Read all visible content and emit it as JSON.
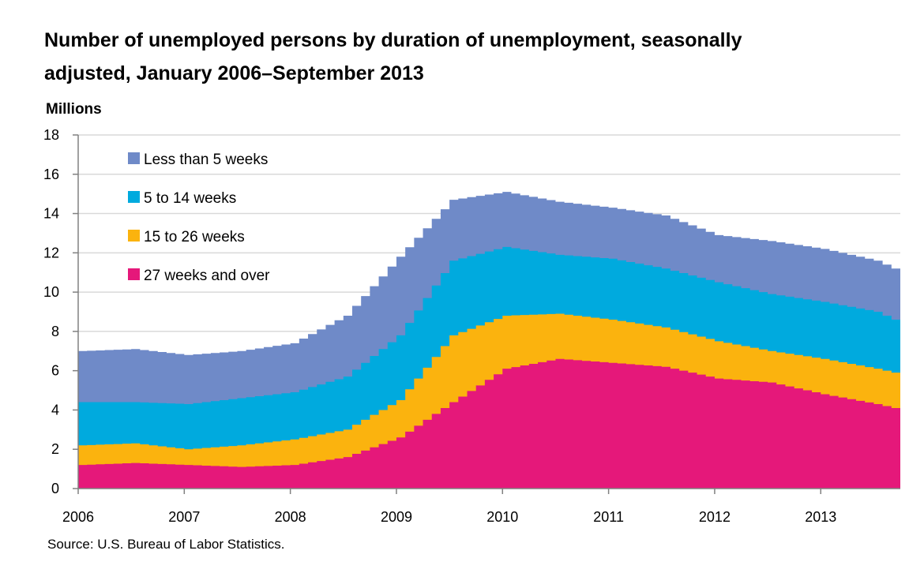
{
  "title": {
    "line1": "Number of unemployed persons by duration of unemployment, seasonally",
    "line2": "adjusted, January 2006–September 2013"
  },
  "source": "Source: U.S. Bureau of Labor Statistics.",
  "chart_data": {
    "type": "area",
    "stacked": true,
    "step": true,
    "ylabel": "Millions",
    "ylim": [
      0,
      18
    ],
    "yticks": [
      0,
      2,
      4,
      6,
      8,
      10,
      12,
      14,
      16,
      18
    ],
    "xticks": [
      "2006",
      "2007",
      "2008",
      "2009",
      "2010",
      "2011",
      "2012",
      "2013"
    ],
    "grid": "horizontal",
    "legend_position": "top-left",
    "x_start": "2006-01",
    "x_end": "2013-09",
    "x_anchor_months": [
      "2006-01",
      "2006-07",
      "2007-01",
      "2007-07",
      "2008-01",
      "2008-07",
      "2009-01",
      "2009-07",
      "2010-01",
      "2010-07",
      "2011-01",
      "2011-07",
      "2012-01",
      "2012-07",
      "2013-01",
      "2013-07",
      "2013-09"
    ],
    "series": [
      {
        "name": "27 weeks and over",
        "color": "#e5187a",
        "values": [
          1.2,
          1.3,
          1.2,
          1.1,
          1.2,
          1.6,
          2.6,
          4.4,
          6.1,
          6.6,
          6.4,
          6.2,
          5.6,
          5.4,
          4.8,
          4.3,
          4.1
        ]
      },
      {
        "name": "15 to 26 weeks",
        "color": "#fbb30e",
        "values": [
          2.2,
          2.3,
          2.0,
          2.2,
          2.5,
          3.0,
          4.5,
          7.8,
          8.8,
          8.9,
          8.6,
          8.2,
          7.5,
          7.0,
          6.6,
          6.1,
          5.9
        ]
      },
      {
        "name": "5 to 14 weeks",
        "color": "#00aade",
        "values": [
          4.4,
          4.4,
          4.3,
          4.6,
          4.9,
          5.7,
          7.8,
          11.6,
          12.3,
          11.9,
          11.7,
          11.2,
          10.5,
          9.9,
          9.5,
          9.0,
          8.6
        ]
      },
      {
        "name": "Less than 5 weeks",
        "color": "#6f8ac8",
        "values": [
          7.0,
          7.1,
          6.8,
          7.0,
          7.4,
          8.8,
          11.8,
          14.7,
          15.1,
          14.6,
          14.3,
          13.9,
          12.9,
          12.6,
          12.2,
          11.6,
          11.2
        ]
      }
    ]
  }
}
